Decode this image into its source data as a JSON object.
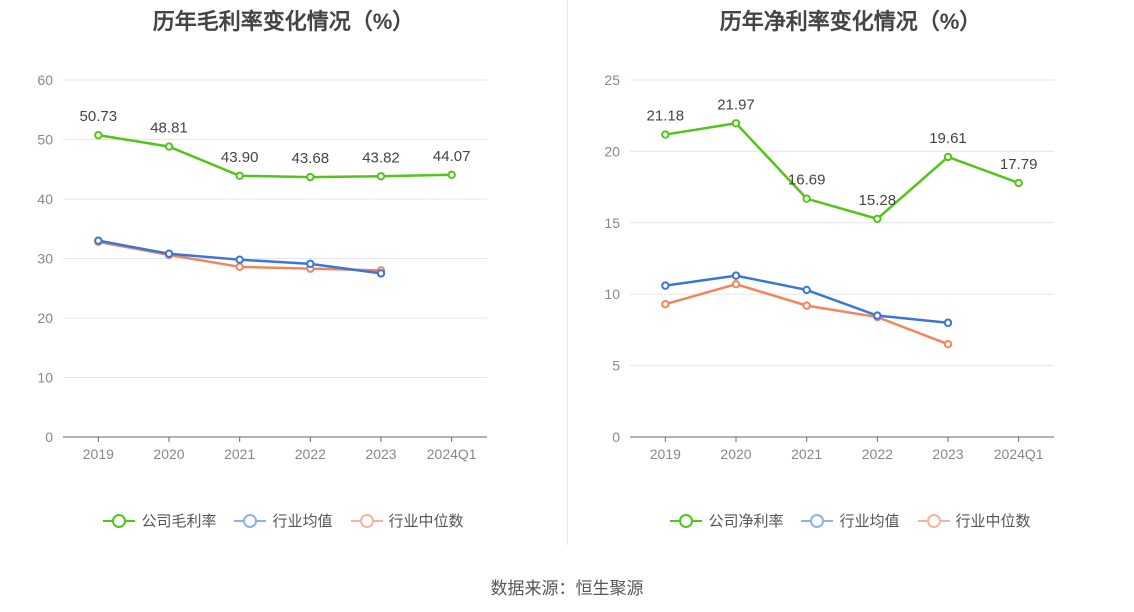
{
  "colors": {
    "company": "#52c41a",
    "avg": "#3a75d9",
    "median": "#f0865e"
  },
  "legend_colors": {
    "company": "#52c41a",
    "avg": "#8fb0ef",
    "median": "#f6b59b"
  },
  "source": "数据来源：恒生聚源",
  "chart_data": [
    {
      "type": "line",
      "title": "历年毛利率变化情况（%）",
      "categories": [
        "2019",
        "2020",
        "2021",
        "2022",
        "2023",
        "2024Q1"
      ],
      "yticks": [
        "0",
        "10",
        "20",
        "30",
        "40",
        "50",
        "60"
      ],
      "ylim": [
        0,
        60
      ],
      "grid": true,
      "legend_position": "bottom",
      "series": [
        {
          "name": "公司毛利率",
          "key": "company",
          "values": [
            50.73,
            48.81,
            43.9,
            43.68,
            43.82,
            44.07
          ],
          "labels": [
            "50.73",
            "48.81",
            "43.90",
            "43.68",
            "43.82",
            "44.07"
          ]
        },
        {
          "name": "行业均值",
          "key": "avg",
          "values": [
            33.0,
            30.8,
            29.8,
            29.1,
            27.5,
            null
          ]
        },
        {
          "name": "行业中位数",
          "key": "median",
          "values": [
            32.8,
            30.6,
            28.6,
            28.3,
            28.0,
            null
          ]
        }
      ]
    },
    {
      "type": "line",
      "title": "历年净利率变化情况（%）",
      "categories": [
        "2019",
        "2020",
        "2021",
        "2022",
        "2023",
        "2024Q1"
      ],
      "yticks": [
        "0",
        "5",
        "10",
        "15",
        "20",
        "25"
      ],
      "ylim": [
        0,
        25
      ],
      "grid": true,
      "legend_position": "bottom",
      "series": [
        {
          "name": "公司净利率",
          "key": "company",
          "values": [
            21.18,
            21.97,
            16.69,
            15.28,
            19.61,
            17.79
          ],
          "labels": [
            "21.18",
            "21.97",
            "16.69",
            "15.28",
            "19.61",
            "17.79"
          ]
        },
        {
          "name": "行业均值",
          "key": "avg",
          "values": [
            10.6,
            11.3,
            10.3,
            8.5,
            8.0,
            null
          ]
        },
        {
          "name": "行业中位数",
          "key": "median",
          "values": [
            9.3,
            10.7,
            9.2,
            8.4,
            6.5,
            null
          ]
        }
      ]
    }
  ]
}
